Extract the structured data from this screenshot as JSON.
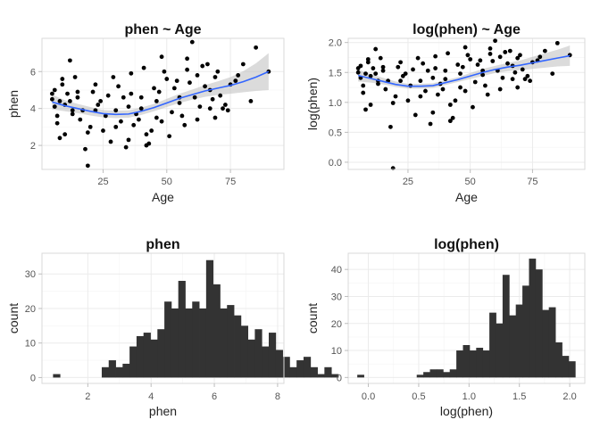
{
  "chart_data": [
    {
      "type": "scatter",
      "title": "phen ~ Age",
      "xlabel": "Age",
      "ylabel": "phen",
      "xticks": [
        25,
        50,
        75
      ],
      "yticks": [
        2,
        4,
        6
      ],
      "xlim": [
        1,
        96
      ],
      "ylim": [
        0.7,
        7.8
      ],
      "grid": true,
      "smooth": {
        "color": "#3366ff",
        "x": [
          5,
          10,
          15,
          20,
          25,
          30,
          35,
          40,
          45,
          50,
          55,
          60,
          65,
          70,
          75,
          80,
          85,
          90
        ],
        "y": [
          4.35,
          4.15,
          4.0,
          3.85,
          3.72,
          3.68,
          3.7,
          3.85,
          4.05,
          4.3,
          4.55,
          4.75,
          4.95,
          5.1,
          5.25,
          5.45,
          5.7,
          6.0
        ],
        "band_lower": [
          3.95,
          3.85,
          3.75,
          3.62,
          3.52,
          3.48,
          3.5,
          3.65,
          3.85,
          4.08,
          4.3,
          4.48,
          4.63,
          4.73,
          4.8,
          4.88,
          4.95,
          5.0
        ],
        "band_upper": [
          4.75,
          4.45,
          4.25,
          4.08,
          3.92,
          3.88,
          3.9,
          4.05,
          4.25,
          4.52,
          4.8,
          5.02,
          5.27,
          5.47,
          5.7,
          6.02,
          6.45,
          7.0
        ]
      },
      "points": {
        "x": [
          5,
          6,
          7,
          8,
          8,
          10,
          12,
          13,
          15,
          18,
          19,
          22,
          25,
          28,
          30,
          33,
          35,
          37,
          40,
          42,
          45,
          48,
          50,
          52,
          55,
          58,
          60,
          62,
          65,
          68,
          70,
          72,
          75,
          80,
          85,
          90,
          6,
          9,
          11,
          14,
          16,
          20,
          23,
          27,
          31,
          34,
          38,
          41,
          44,
          47,
          51,
          54,
          57,
          61,
          64,
          67,
          71,
          74,
          78,
          83,
          7,
          12,
          17,
          21,
          26,
          29,
          32,
          36,
          39,
          43,
          46,
          49,
          53,
          56,
          59,
          63,
          66,
          69,
          73,
          77,
          10,
          15,
          24,
          30,
          36,
          42,
          48,
          55,
          62,
          69,
          5,
          13,
          19,
          35,
          46,
          58,
          67,
          9,
          22,
          40
        ],
        "y": [
          4.5,
          5.0,
          3.6,
          4.4,
          2.4,
          4.2,
          6.6,
          3.7,
          4.6,
          1.8,
          0.9,
          5.3,
          2.8,
          2.2,
          3.9,
          4.6,
          2.3,
          3.1,
          4.0,
          2.6,
          5.1,
          3.3,
          5.6,
          3.8,
          4.3,
          6.7,
          7.6,
          3.4,
          5.2,
          4.5,
          6.0,
          4.0,
          5.3,
          6.4,
          7.3,
          6.0,
          4.1,
          5.3,
          4.8,
          5.7,
          3.4,
          3.0,
          4.2,
          4.7,
          5.2,
          1.9,
          3.7,
          6.2,
          2.8,
          4.9,
          2.5,
          5.5,
          3.1,
          4.6,
          6.3,
          5.0,
          4.7,
          3.9,
          5.8,
          4.4,
          3.2,
          4.4,
          3.9,
          4.9,
          3.6,
          5.7,
          3.3,
          4.8,
          3.4,
          2.1,
          4.4,
          6.0,
          5.1,
          3.6,
          5.4,
          4.1,
          6.4,
          5.7,
          4.2,
          5.5,
          2.6,
          4.9,
          4.4,
          3.0,
          5.9,
          2.0,
          6.8,
          4.6,
          5.8,
          3.5,
          4.8,
          3.9,
          2.7,
          4.1,
          3.5,
          6.1,
          4.0,
          5.6,
          3.9,
          4.6
        ]
      }
    },
    {
      "type": "scatter",
      "title": "log(phen) ~ Age",
      "xlabel": "Age",
      "ylabel": "log(phen)",
      "xticks": [
        25,
        50,
        75
      ],
      "yticks": [
        0.0,
        0.5,
        1.0,
        1.5,
        2.0
      ],
      "ytick_labels": [
        "0.0",
        "0.5",
        "1.0",
        "1.5",
        "2.0"
      ],
      "xlim": [
        1,
        96
      ],
      "ylim": [
        -0.12,
        2.07
      ],
      "grid": true,
      "smooth": {
        "color": "#3366ff",
        "x": [
          5,
          10,
          15,
          20,
          25,
          30,
          35,
          40,
          45,
          50,
          55,
          60,
          65,
          70,
          75,
          80,
          85,
          90
        ],
        "y": [
          1.45,
          1.4,
          1.35,
          1.3,
          1.27,
          1.27,
          1.28,
          1.33,
          1.38,
          1.44,
          1.5,
          1.55,
          1.59,
          1.62,
          1.66,
          1.7,
          1.74,
          1.78
        ],
        "band_lower": [
          1.35,
          1.33,
          1.3,
          1.26,
          1.23,
          1.23,
          1.24,
          1.29,
          1.34,
          1.39,
          1.44,
          1.49,
          1.52,
          1.54,
          1.56,
          1.58,
          1.6,
          1.61
        ],
        "band_upper": [
          1.55,
          1.47,
          1.41,
          1.35,
          1.31,
          1.31,
          1.32,
          1.37,
          1.42,
          1.49,
          1.56,
          1.61,
          1.66,
          1.7,
          1.76,
          1.82,
          1.88,
          1.95
        ]
      },
      "points": {
        "x": [
          5,
          6,
          7,
          8,
          8,
          10,
          12,
          13,
          15,
          18,
          19,
          22,
          25,
          28,
          30,
          33,
          35,
          37,
          40,
          42,
          45,
          48,
          50,
          52,
          55,
          58,
          60,
          62,
          65,
          68,
          70,
          72,
          75,
          80,
          85,
          90,
          6,
          9,
          11,
          14,
          16,
          20,
          23,
          27,
          31,
          34,
          38,
          41,
          44,
          47,
          51,
          54,
          57,
          61,
          64,
          67,
          71,
          74,
          78,
          83,
          7,
          12,
          17,
          21,
          26,
          29,
          32,
          36,
          39,
          43,
          46,
          49,
          53,
          56,
          59,
          63,
          66,
          69,
          73,
          77,
          10,
          15,
          24,
          30,
          36,
          42,
          48,
          55,
          62,
          69,
          5,
          13,
          19,
          35,
          46,
          58,
          67,
          9,
          22,
          40
        ],
        "y": [
          1.5,
          1.61,
          1.28,
          1.48,
          0.88,
          1.44,
          1.89,
          1.31,
          1.53,
          0.59,
          -0.1,
          1.67,
          1.03,
          0.79,
          1.36,
          1.53,
          0.83,
          1.13,
          1.39,
          0.96,
          1.63,
          1.19,
          1.72,
          1.34,
          1.46,
          1.9,
          2.03,
          1.22,
          1.65,
          1.5,
          1.79,
          1.39,
          1.67,
          1.86,
          1.99,
          1.79,
          1.41,
          1.67,
          1.57,
          1.74,
          1.22,
          1.1,
          1.44,
          1.55,
          1.65,
          0.64,
          1.31,
          1.82,
          1.03,
          1.59,
          0.92,
          1.7,
          1.13,
          1.53,
          1.84,
          1.61,
          1.55,
          1.36,
          1.76,
          1.48,
          1.16,
          1.48,
          1.36,
          1.59,
          1.28,
          1.74,
          1.19,
          1.57,
          1.22,
          0.74,
          1.48,
          1.79,
          1.63,
          1.28,
          1.69,
          1.41,
          1.86,
          1.74,
          1.44,
          1.7,
          0.96,
          1.59,
          1.48,
          1.1,
          1.77,
          0.69,
          1.92,
          1.53,
          1.76,
          1.25,
          1.57,
          1.36,
          0.99,
          1.41,
          1.25,
          1.81,
          1.39,
          1.72,
          1.36,
          1.53
        ]
      }
    },
    {
      "type": "bar",
      "title": "phen",
      "xlabel": "phen",
      "ylabel": "count",
      "xticks": [
        2,
        4,
        6,
        8
      ],
      "yticks": [
        0,
        10,
        20,
        30
      ],
      "xlim": [
        0.55,
        8.2
      ],
      "ylim": [
        -1.7,
        36
      ],
      "grid": true,
      "bar_color": "#333333",
      "bins": {
        "start": 0.9,
        "width": 0.22
      },
      "values": [
        1,
        0,
        0,
        0,
        0,
        0,
        0,
        3,
        5,
        3,
        4,
        9,
        12,
        13,
        11,
        14,
        22,
        20,
        28,
        20,
        22,
        20,
        34,
        27,
        20,
        21,
        18,
        15,
        11,
        14,
        9,
        13,
        8,
        6,
        3,
        5,
        6,
        3,
        1,
        3,
        1
      ]
    },
    {
      "type": "bar",
      "title": "log(phen)",
      "xlabel": "log(phen)",
      "ylabel": "count",
      "xticks": [
        0.0,
        0.5,
        1.0,
        1.5,
        2.0
      ],
      "xtick_labels": [
        "0.0",
        "0.5",
        "1.0",
        "1.5",
        "2.0"
      ],
      "yticks": [
        0,
        10,
        20,
        30,
        40
      ],
      "xlim": [
        -0.2,
        2.15
      ],
      "ylim": [
        -2.2,
        46
      ],
      "grid": true,
      "bar_color": "#333333",
      "bins": {
        "start": -0.11,
        "width": 0.0656
      },
      "values": [
        1,
        0,
        0,
        0,
        0,
        0,
        0,
        0,
        0,
        1,
        2,
        3,
        3,
        2,
        3,
        10,
        12,
        10,
        11,
        10,
        24,
        20,
        38,
        23,
        27,
        34,
        44,
        40,
        25,
        26,
        13,
        8,
        6
      ]
    }
  ]
}
